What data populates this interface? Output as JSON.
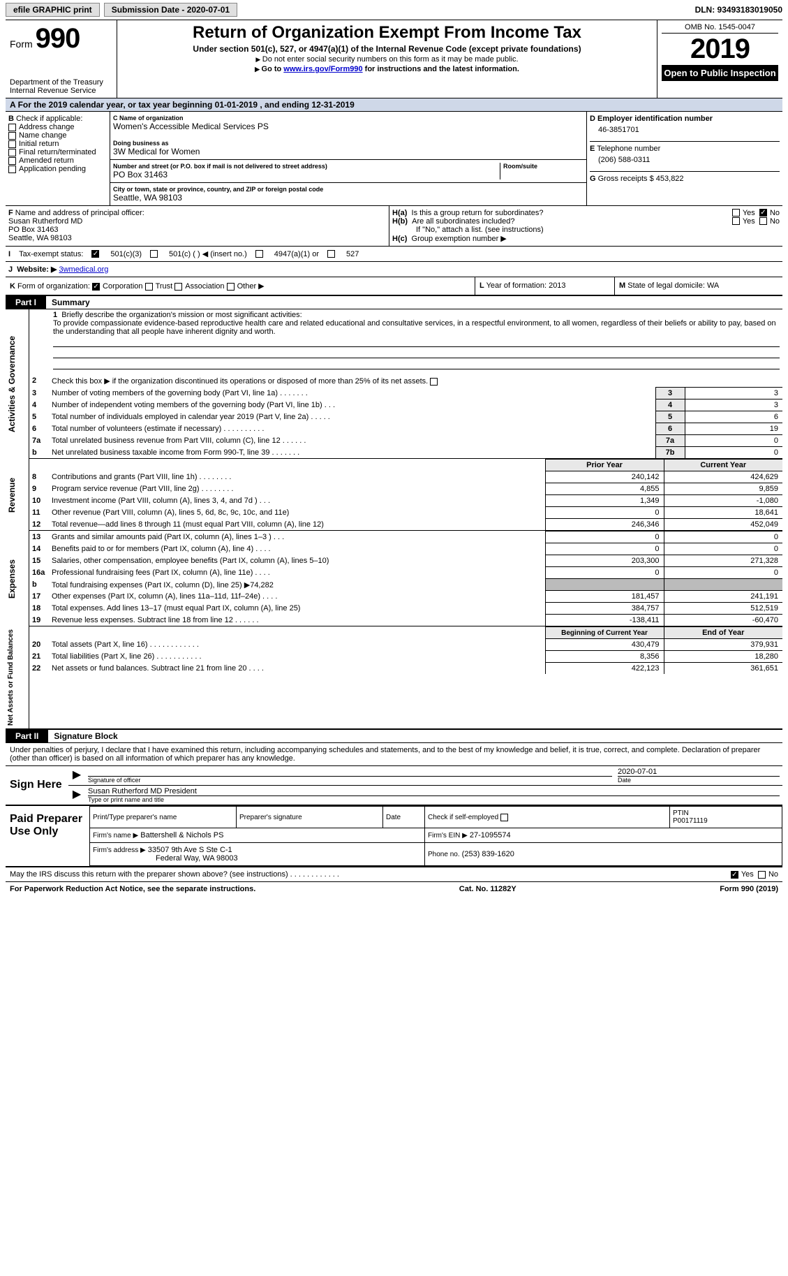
{
  "topbar": {
    "efile": "efile GRAPHIC print",
    "submission_label": "Submission Date - 2020-07-01",
    "dln": "DLN: 93493183019050"
  },
  "header": {
    "form_label": "Form",
    "form_number": "990",
    "dept": "Department of the Treasury\nInternal Revenue Service",
    "title": "Return of Organization Exempt From Income Tax",
    "subtitle": "Under section 501(c), 527, or 4947(a)(1) of the Internal Revenue Code (except private foundations)",
    "instr1": "Do not enter social security numbers on this form as it may be made public.",
    "instr2_a": "Go to ",
    "instr2_link": "www.irs.gov/Form990",
    "instr2_b": " for instructions and the latest information.",
    "omb": "OMB No. 1545-0047",
    "year": "2019",
    "open_public": "Open to Public Inspection"
  },
  "rowA": "For the 2019 calendar year, or tax year beginning 01-01-2019    , and ending 12-31-2019",
  "boxB": {
    "label": "Check if applicable:",
    "items": [
      "Address change",
      "Name change",
      "Initial return",
      "Final return/terminated",
      "Amended return",
      "Application pending"
    ]
  },
  "boxC": {
    "name_label": "Name of organization",
    "name": "Women's Accessible Medical Services PS",
    "dba_label": "Doing business as",
    "dba": "3W Medical for Women",
    "addr_label": "Number and street (or P.O. box if mail is not delivered to street address)",
    "room_label": "Room/suite",
    "addr": "PO Box 31463",
    "city_label": "City or town, state or province, country, and ZIP or foreign postal code",
    "city": "Seattle, WA  98103"
  },
  "boxD": {
    "label": "Employer identification number",
    "val": "46-3851701"
  },
  "boxE": {
    "label": "Telephone number",
    "val": "(206) 588-0311"
  },
  "boxG": {
    "label": "Gross receipts $",
    "val": "453,822"
  },
  "boxF": {
    "label": "Name and address of principal officer:",
    "name": "Susan Rutherford MD",
    "addr1": "PO Box 31463",
    "addr2": "Seattle, WA  98103"
  },
  "boxH": {
    "a_label": "Is this a group return for subordinates?",
    "a_yes": "Yes",
    "a_no": "No",
    "b_label": "Are all subordinates included?",
    "attach": "If \"No,\" attach a list. (see instructions)",
    "c_label": "Group exemption number ▶"
  },
  "rowI": {
    "label": "Tax-exempt status:",
    "o1": "501(c)(3)",
    "o2": "501(c) (  ) ◀ (insert no.)",
    "o3": "4947(a)(1) or",
    "o4": "527"
  },
  "rowJ": {
    "label": "Website: ▶",
    "val": "3wmedical.org"
  },
  "rowK": {
    "label": "Form of organization:",
    "o1": "Corporation",
    "o2": "Trust",
    "o3": "Association",
    "o4": "Other ▶",
    "L": "Year of formation: 2013",
    "M": "State of legal domicile: WA"
  },
  "partI": {
    "tab": "Part I",
    "title": "Summary"
  },
  "summary": {
    "g1": {
      "vlab": "Activities & Governance",
      "l1_label": "Briefly describe the organization's mission or most significant activities:",
      "l1_text": "To provide compassionate evidence-based reproductive health care and related educational and consultative services, in a respectful environment, to all women, regardless of their beliefs or ability to pay, based on the understanding that all people have inherent dignity and worth.",
      "l2": "Check this box ▶      if the organization discontinued its operations or disposed of more than 25% of its net assets.",
      "rows": [
        {
          "n": "3",
          "d": "Number of voting members of the governing body (Part VI, line 1a)   .    .    .    .    .    .    .",
          "b": "3",
          "v": "3"
        },
        {
          "n": "4",
          "d": "Number of independent voting members of the governing body (Part VI, line 1b)   .    .    .",
          "b": "4",
          "v": "3"
        },
        {
          "n": "5",
          "d": "Total number of individuals employed in calendar year 2019 (Part V, line 2a)   .    .    .    .    .",
          "b": "5",
          "v": "6"
        },
        {
          "n": "6",
          "d": "Total number of volunteers (estimate if necessary)   .    .    .    .    .    .    .    .    .    .",
          "b": "6",
          "v": "19"
        },
        {
          "n": "7a",
          "d": "Total unrelated business revenue from Part VIII, column (C), line 12   .    .    .    .    .    .",
          "b": "7a",
          "v": "0"
        },
        {
          "n": "b",
          "d": "Net unrelated business taxable income from Form 990-T, line 39   .    .    .    .    .    .    .",
          "b": "7b",
          "v": "0"
        }
      ]
    },
    "g2": {
      "vlab": "Revenue",
      "hdr_prior": "Prior Year",
      "hdr_cur": "Current Year",
      "rows": [
        {
          "n": "8",
          "d": "Contributions and grants (Part VIII, line 1h)   .    .    .    .    .    .    .    .",
          "p": "240,142",
          "c": "424,629"
        },
        {
          "n": "9",
          "d": "Program service revenue (Part VIII, line 2g)   .    .    .    .    .    .    .    .",
          "p": "4,855",
          "c": "9,859"
        },
        {
          "n": "10",
          "d": "Investment income (Part VIII, column (A), lines 3, 4, and 7d )   .    .    .",
          "p": "1,349",
          "c": "-1,080"
        },
        {
          "n": "11",
          "d": "Other revenue (Part VIII, column (A), lines 5, 6d, 8c, 9c, 10c, and 11e)",
          "p": "0",
          "c": "18,641"
        },
        {
          "n": "12",
          "d": "Total revenue—add lines 8 through 11 (must equal Part VIII, column (A), line 12)",
          "p": "246,346",
          "c": "452,049"
        }
      ]
    },
    "g3": {
      "vlab": "Expenses",
      "rows": [
        {
          "n": "13",
          "d": "Grants and similar amounts paid (Part IX, column (A), lines 1–3 )   .    .    .",
          "p": "0",
          "c": "0"
        },
        {
          "n": "14",
          "d": "Benefits paid to or for members (Part IX, column (A), line 4)   .    .    .    .",
          "p": "0",
          "c": "0"
        },
        {
          "n": "15",
          "d": "Salaries, other compensation, employee benefits (Part IX, column (A), lines 5–10)",
          "p": "203,300",
          "c": "271,328"
        },
        {
          "n": "16a",
          "d": "Professional fundraising fees (Part IX, column (A), line 11e)   .    .    .    .",
          "p": "0",
          "c": "0"
        },
        {
          "n": "b",
          "d": "Total fundraising expenses (Part IX, column (D), line 25) ▶74,282",
          "p": "",
          "c": "",
          "shade": true
        },
        {
          "n": "17",
          "d": "Other expenses (Part IX, column (A), lines 11a–11d, 11f–24e)   .    .    .    .",
          "p": "181,457",
          "c": "241,191"
        },
        {
          "n": "18",
          "d": "Total expenses. Add lines 13–17 (must equal Part IX, column (A), line 25)",
          "p": "384,757",
          "c": "512,519"
        },
        {
          "n": "19",
          "d": "Revenue less expenses. Subtract line 18 from line 12   .    .    .    .    .    .",
          "p": "-138,411",
          "c": "-60,470"
        }
      ]
    },
    "g4": {
      "vlab": "Net Assets or Fund Balances",
      "hdr_prior": "Beginning of Current Year",
      "hdr_cur": "End of Year",
      "rows": [
        {
          "n": "20",
          "d": "Total assets (Part X, line 16)   .    .    .    .    .    .    .    .    .    .    .    .",
          "p": "430,479",
          "c": "379,931"
        },
        {
          "n": "21",
          "d": "Total liabilities (Part X, line 26)   .    .    .    .    .    .    .    .    .    .    .",
          "p": "8,356",
          "c": "18,280"
        },
        {
          "n": "22",
          "d": "Net assets or fund balances. Subtract line 21 from line 20   .    .    .    .",
          "p": "422,123",
          "c": "361,651"
        }
      ]
    }
  },
  "partII": {
    "tab": "Part II",
    "title": "Signature Block"
  },
  "sig": {
    "decl": "Under penalties of perjury, I declare that I have examined this return, including accompanying schedules and statements, and to the best of my knowledge and belief, it is true, correct, and complete. Declaration of preparer (other than officer) is based on all information of which preparer has any knowledge.",
    "sign_here": "Sign Here",
    "sig_officer": "Signature of officer",
    "date": "Date",
    "date_val": "2020-07-01",
    "name_title": "Susan Rutherford MD  President",
    "type_name": "Type or print name and title"
  },
  "paid": {
    "label": "Paid Preparer Use Only",
    "h_name": "Print/Type preparer's name",
    "h_sig": "Preparer's signature",
    "h_date": "Date",
    "h_check": "Check       if self-employed",
    "h_ptin": "PTIN",
    "ptin": "P00171119",
    "firm_name_l": "Firm's name      ▶",
    "firm_name": "Battershell & Nichols PS",
    "firm_ein_l": "Firm's EIN ▶",
    "firm_ein": "27-1095574",
    "firm_addr_l": "Firm's address ▶",
    "firm_addr1": "33507 9th Ave S Ste C-1",
    "firm_addr2": "Federal Way, WA  98003",
    "phone_l": "Phone no.",
    "phone": "(253) 839-1620"
  },
  "footer": {
    "discuss": "May the IRS discuss this return with the preparer shown above? (see instructions)   .    .    .    .    .    .    .    .    .    .    .    .",
    "yes": "Yes",
    "no": "No",
    "pra": "For Paperwork Reduction Act Notice, see the separate instructions.",
    "cat": "Cat. No. 11282Y",
    "form": "Form 990 (2019)"
  }
}
